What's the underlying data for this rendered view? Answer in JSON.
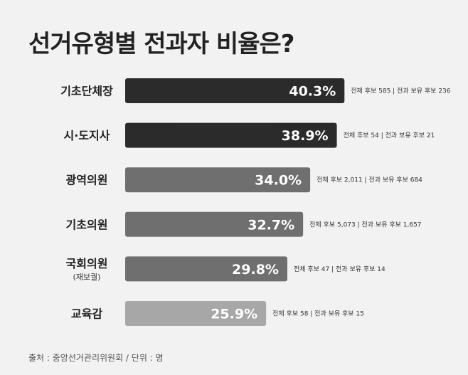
{
  "title": "선거유형별 전과자 비율은?",
  "source": "출처 : 중앙선거관리위원회 / 단위 : 명",
  "chart_data": {
    "type": "bar",
    "orientation": "horizontal",
    "title": "선거유형별 전과자 비율은?",
    "categories": [
      "기초단체장",
      "시·도지사",
      "광역의원",
      "기초의원",
      "국회의원",
      "교육감"
    ],
    "category_sublabels": [
      "",
      "",
      "",
      "",
      "(재보궐)",
      ""
    ],
    "values": [
      40.3,
      38.9,
      34.0,
      32.7,
      29.8,
      25.9
    ],
    "value_labels": [
      "40.3%",
      "38.9%",
      "34.0%",
      "32.7%",
      "29.8%",
      "25.9%"
    ],
    "annotations": [
      "전체 후보 585 | 전과 보유 후보 236",
      "전체 후보 54 | 전과 보유 후보 21",
      "전체 후보 2,011 | 전과 보유 후보 684",
      "전체 후보 5,073 | 전과 보유 후보 1,657",
      "전체 후보 47 | 전과 보유 후보 14",
      "전체 후보 58 | 전과 보유 후보 15"
    ],
    "bar_colors": [
      "#2b2b2b",
      "#2b2b2b",
      "#6f6f6f",
      "#6f6f6f",
      "#6f6f6f",
      "#a7a7a7"
    ],
    "grid": false,
    "legend": "none"
  }
}
